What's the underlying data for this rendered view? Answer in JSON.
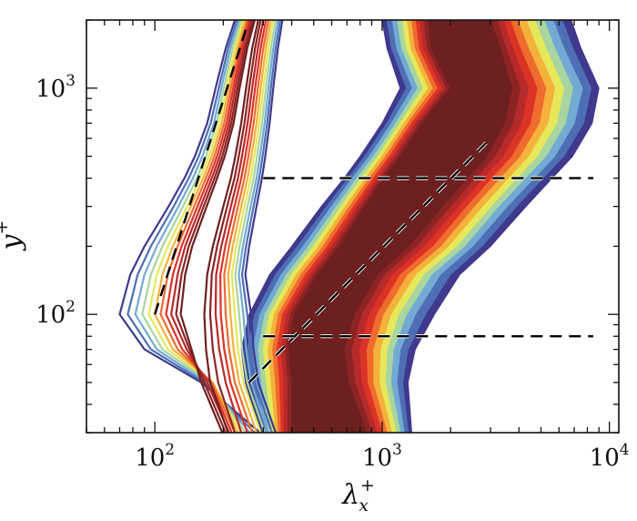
{
  "chart_data": {
    "type": "contour",
    "xlabel": "λ",
    "xlabel_sub": "x",
    "xlabel_sup": "+",
    "ylabel": "y",
    "ylabel_sup": "+",
    "x_scale": "log",
    "y_scale": "log",
    "xlim": [
      50,
      11000
    ],
    "ylim": [
      30,
      2000
    ],
    "x_ticks": [
      {
        "value": 100,
        "base": "10",
        "exp": "2"
      },
      {
        "value": 1000,
        "base": "10",
        "exp": "3"
      },
      {
        "value": 10000,
        "base": "10",
        "exp": "4"
      }
    ],
    "y_ticks": [
      {
        "value": 100,
        "base": "10",
        "exp": "2"
      },
      {
        "value": 1000,
        "base": "10",
        "exp": "3"
      }
    ],
    "colormap": [
      "#3f3a8c",
      "#4f6fb5",
      "#72aad3",
      "#a8d5a0",
      "#e6e85a",
      "#f4b13c",
      "#ef6b2e",
      "#dc3327",
      "#b82a2a",
      "#8c2424",
      "#6e1f1f"
    ],
    "filled_contours": {
      "y": [
        30,
        50,
        70,
        100,
        150,
        200,
        300,
        400,
        500,
        700,
        1000,
        1500,
        2000
      ],
      "levels": [
        {
          "left": [
            290,
            250,
            240,
            260,
            320,
            400,
            540,
            680,
            800,
            1000,
            1200,
            1050,
            1000
          ],
          "right": [
            1350,
            1300,
            1400,
            1700,
            2200,
            3000,
            4300,
            5600,
            6900,
            8400,
            9000,
            7500,
            6800
          ]
        },
        {
          "left": [
            300,
            265,
            255,
            275,
            340,
            425,
            570,
            710,
            840,
            1050,
            1280,
            1100,
            1050
          ],
          "right": [
            1300,
            1230,
            1300,
            1550,
            2000,
            2750,
            3900,
            5100,
            6300,
            7700,
            8300,
            6900,
            6200
          ]
        },
        {
          "left": [
            310,
            280,
            270,
            290,
            360,
            450,
            600,
            740,
            880,
            1100,
            1360,
            1160,
            1110
          ],
          "right": [
            1250,
            1160,
            1200,
            1400,
            1800,
            2500,
            3550,
            4650,
            5750,
            7000,
            7600,
            6300,
            5650
          ]
        },
        {
          "left": [
            320,
            295,
            285,
            305,
            380,
            475,
            630,
            775,
            920,
            1150,
            1440,
            1220,
            1170
          ],
          "right": [
            1200,
            1090,
            1120,
            1280,
            1650,
            2300,
            3250,
            4250,
            5250,
            6400,
            6900,
            5750,
            5150
          ]
        },
        {
          "left": [
            330,
            310,
            300,
            320,
            400,
            500,
            660,
            810,
            960,
            1200,
            1520,
            1280,
            1230
          ],
          "right": [
            1150,
            1030,
            1050,
            1180,
            1520,
            2120,
            3000,
            3900,
            4800,
            5850,
            6300,
            5250,
            4700
          ]
        },
        {
          "left": [
            340,
            325,
            315,
            335,
            420,
            525,
            690,
            845,
            1000,
            1250,
            1600,
            1340,
            1290
          ],
          "right": [
            1100,
            970,
            980,
            1090,
            1400,
            1950,
            2760,
            3580,
            4400,
            5350,
            5750,
            4800,
            4300
          ]
        },
        {
          "left": [
            350,
            340,
            330,
            350,
            440,
            550,
            720,
            880,
            1040,
            1300,
            1680,
            1400,
            1350
          ],
          "right": [
            1050,
            910,
            910,
            1010,
            1290,
            1800,
            2540,
            3290,
            4030,
            4900,
            5250,
            4400,
            3950
          ]
        },
        {
          "left": [
            360,
            355,
            345,
            365,
            460,
            575,
            750,
            915,
            1080,
            1350,
            1760,
            1460,
            1410
          ],
          "right": [
            1000,
            860,
            850,
            940,
            1190,
            1660,
            2340,
            3020,
            3700,
            4480,
            4800,
            4050,
            3650
          ]
        },
        {
          "left": [
            370,
            370,
            360,
            380,
            480,
            600,
            780,
            950,
            1120,
            1400,
            1840,
            1520,
            1470
          ],
          "right": [
            950,
            810,
            790,
            870,
            1100,
            1530,
            2160,
            2780,
            3400,
            4100,
            4400,
            3750,
            3400
          ]
        },
        {
          "left": [
            385,
            385,
            375,
            395,
            500,
            625,
            810,
            985,
            1160,
            1450,
            1920,
            1580,
            1530
          ],
          "right": [
            900,
            760,
            730,
            810,
            1020,
            1410,
            1990,
            2560,
            3130,
            3760,
            4050,
            3500,
            3200
          ]
        },
        {
          "left": [
            400,
            400,
            390,
            410,
            520,
            650,
            840,
            1020,
            1200,
            1500,
            2000,
            1650,
            1600
          ],
          "right": [
            850,
            710,
            680,
            750,
            950,
            1300,
            1840,
            2360,
            2880,
            3450,
            3720,
            3300,
            3000
          ]
        }
      ]
    },
    "line_contours": {
      "y": [
        30,
        50,
        70,
        100,
        150,
        200,
        300,
        400,
        500,
        700,
        1000,
        1500,
        2000
      ],
      "lines": [
        {
          "x": [
            290,
            160,
            90,
            70,
            78,
            90,
            115,
            135,
            150,
            170,
            185,
            205,
            225
          ],
          "level": 0
        },
        {
          "x": [
            275,
            165,
            96,
            76,
            84,
            96,
            121,
            141,
            156,
            176,
            191,
            210,
            230
          ],
          "level": 1
        },
        {
          "x": [
            262,
            170,
            102,
            82,
            90,
            102,
            127,
            147,
            162,
            182,
            196,
            215,
            235
          ],
          "level": 2
        },
        {
          "x": [
            250,
            175,
            108,
            88,
            96,
            108,
            133,
            153,
            168,
            187,
            201,
            220,
            240
          ],
          "level": 3
        },
        {
          "x": [
            240,
            178,
            114,
            94,
            102,
            114,
            139,
            158,
            173,
            192,
            206,
            225,
            245
          ],
          "level": 4
        },
        {
          "x": [
            232,
            180,
            120,
            100,
            108,
            120,
            144,
            163,
            178,
            197,
            211,
            230,
            250
          ],
          "level": 5
        },
        {
          "x": [
            225,
            178,
            126,
            106,
            114,
            126,
            149,
            168,
            183,
            202,
            216,
            235,
            255
          ],
          "level": 6
        },
        {
          "x": [
            218,
            175,
            132,
            112,
            120,
            131,
            154,
            173,
            188,
            207,
            221,
            240,
            260
          ],
          "level": 7
        },
        {
          "x": [
            212,
            170,
            138,
            118,
            126,
            136,
            159,
            178,
            193,
            212,
            226,
            245,
            265
          ],
          "level": 8
        },
        {
          "x": [
            205,
            165,
            142,
            124,
            131,
            141,
            164,
            183,
            198,
            217,
            231,
            250,
            270
          ],
          "level": 9
        },
        {
          "x": [
            198,
            160,
            145,
            130,
            136,
            146,
            169,
            188,
            203,
            222,
            236,
            255,
            275
          ],
          "level": 10
        },
        {
          "x": [
            210,
            175,
            168,
            165,
            170,
            180,
            200,
            216,
            226,
            240,
            252,
            268,
            285
          ],
          "level": 10
        },
        {
          "x": [
            225,
            190,
            180,
            175,
            178,
            188,
            208,
            224,
            234,
            248,
            260,
            276,
            292
          ],
          "level": 9
        },
        {
          "x": [
            240,
            205,
            192,
            185,
            186,
            196,
            216,
            232,
            242,
            256,
            268,
            284,
            300
          ],
          "level": 8
        },
        {
          "x": [
            255,
            215,
            202,
            195,
            194,
            204,
            224,
            240,
            250,
            264,
            276,
            292,
            308
          ],
          "level": 7
        },
        {
          "x": [
            268,
            225,
            212,
            205,
            202,
            212,
            232,
            248,
            258,
            272,
            284,
            300,
            316
          ],
          "level": 6
        },
        {
          "x": [
            280,
            235,
            222,
            215,
            210,
            220,
            240,
            256,
            266,
            280,
            292,
            308,
            324
          ],
          "level": 5
        },
        {
          "x": [
            292,
            245,
            232,
            225,
            218,
            228,
            248,
            264,
            274,
            288,
            300,
            316,
            332
          ],
          "level": 4
        },
        {
          "x": [
            304,
            255,
            242,
            235,
            226,
            236,
            256,
            272,
            282,
            296,
            308,
            324,
            340
          ],
          "level": 3
        },
        {
          "x": [
            316,
            265,
            252,
            245,
            234,
            244,
            264,
            280,
            290,
            304,
            316,
            332,
            348
          ],
          "level": 2
        },
        {
          "x": [
            328,
            275,
            262,
            255,
            242,
            252,
            272,
            288,
            298,
            312,
            324,
            340,
            356
          ],
          "level": 1
        },
        {
          "x": [
            340,
            285,
            272,
            265,
            250,
            260,
            280,
            296,
            306,
            320,
            332,
            348,
            364
          ],
          "level": 0
        }
      ]
    },
    "reference_lines": [
      {
        "points": [
          [
            100,
            100
          ],
          [
            255,
            1900
          ]
        ],
        "color": "#000000"
      },
      {
        "points": [
          [
            260,
            50
          ],
          [
            3000,
            600
          ]
        ],
        "color": "#000000",
        "halo": true
      },
      {
        "points": [
          [
            300,
            400
          ],
          [
            8500,
            400
          ]
        ],
        "color": "#000000",
        "halo": true
      },
      {
        "points": [
          [
            300,
            80
          ],
          [
            8500,
            80
          ]
        ],
        "color": "#000000",
        "halo": true
      }
    ]
  }
}
